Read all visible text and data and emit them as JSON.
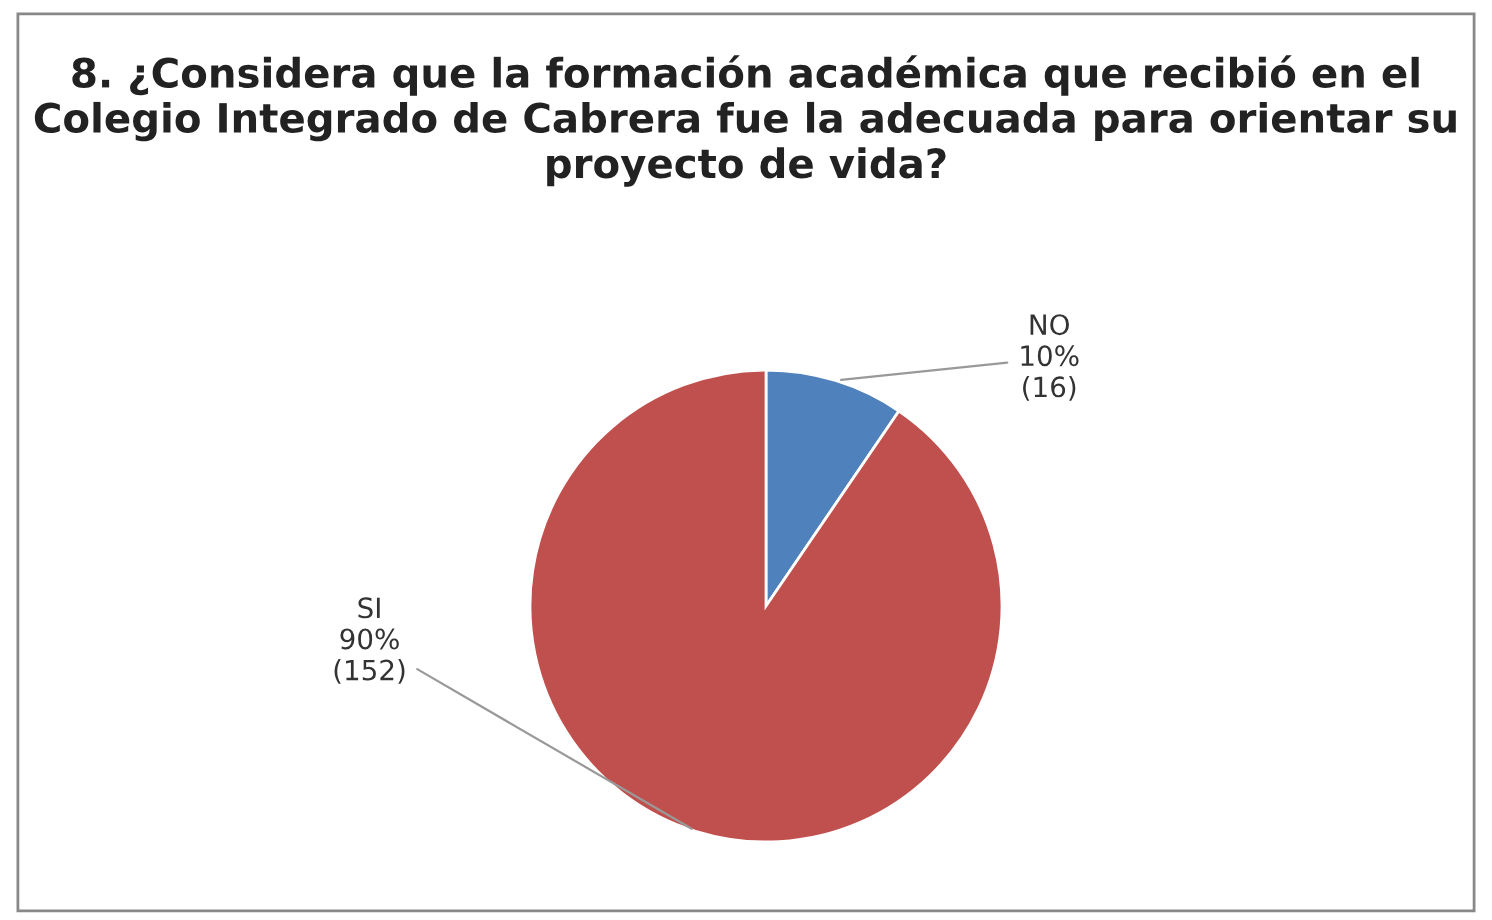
{
  "chart_data": {
    "type": "pie",
    "title": "8. ¿Considera que la formación académica que recibió en el Colegio Integrado de Cabrera fue la adecuada para orientar su proyecto de vida?",
    "categories": [
      "NO",
      "SI"
    ],
    "values": [
      16,
      152
    ],
    "value_labels": [
      "10%\n(16)",
      "90%\n(152)"
    ],
    "colors": [
      "#4f81bd",
      "#c0504d"
    ],
    "legend": false
  }
}
